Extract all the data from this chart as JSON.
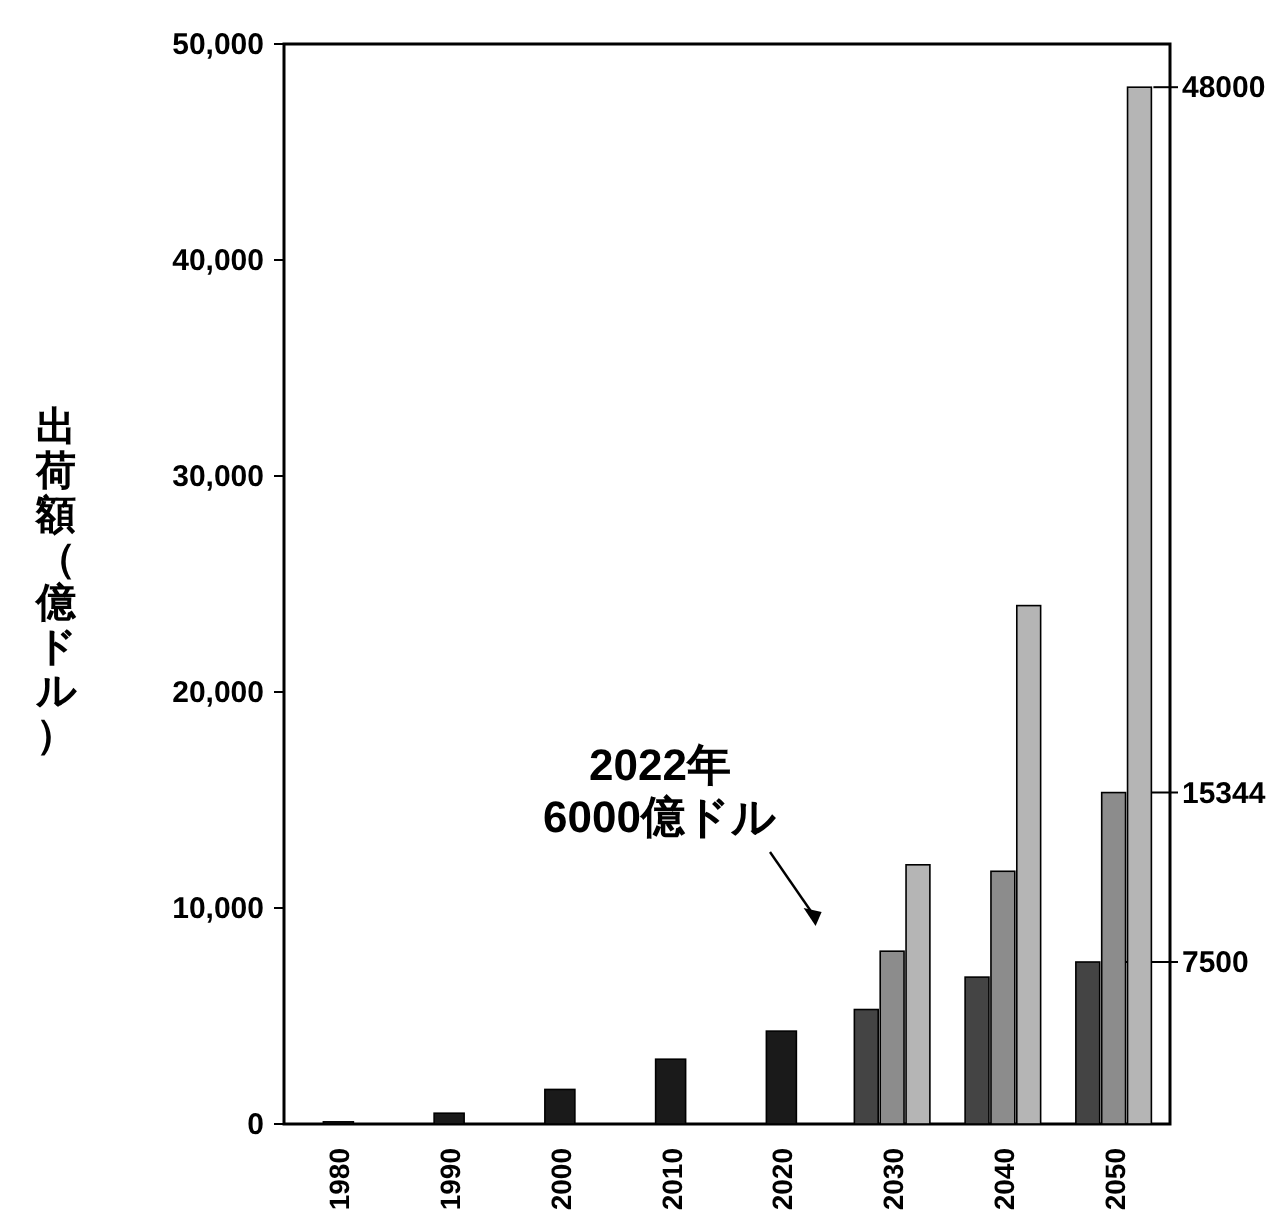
{
  "chart_data": {
    "type": "bar",
    "ylabel": "出荷額（億ドル）",
    "categories": [
      "1980",
      "1990",
      "2000",
      "2010",
      "2020",
      "2030",
      "2040",
      "2050"
    ],
    "series": [
      {
        "color": "#1a1a1a",
        "values": [
          100,
          500,
          1600,
          3000,
          4300,
          null,
          null,
          null
        ]
      },
      {
        "color": "#444444",
        "values": [
          null,
          null,
          null,
          null,
          null,
          5300,
          6800,
          7500
        ],
        "value_labels": [
          null,
          null,
          null,
          null,
          null,
          null,
          null,
          "7500"
        ]
      },
      {
        "color": "#8c8c8c",
        "values": [
          null,
          null,
          null,
          null,
          null,
          8000,
          11700,
          15344
        ],
        "value_labels": [
          null,
          null,
          null,
          null,
          null,
          null,
          null,
          "15344"
        ]
      },
      {
        "color": "#b5b5b5",
        "values": [
          null,
          null,
          null,
          null,
          null,
          12000,
          24000,
          48000
        ],
        "value_labels": [
          null,
          null,
          null,
          null,
          null,
          null,
          null,
          "48000"
        ]
      }
    ],
    "ylim": [
      0,
      50000
    ],
    "yticks": [
      0,
      {
        "value": 10000,
        "label": "10,000"
      },
      {
        "value": 20000,
        "label": "20,000"
      },
      {
        "value": 30000,
        "label": "30,000"
      },
      {
        "value": 40000,
        "label": "40,000"
      },
      {
        "value": 50000,
        "label": "50,000"
      }
    ],
    "annotations": [
      "2022年\n6000億ドル"
    ],
    "grid": false
  }
}
